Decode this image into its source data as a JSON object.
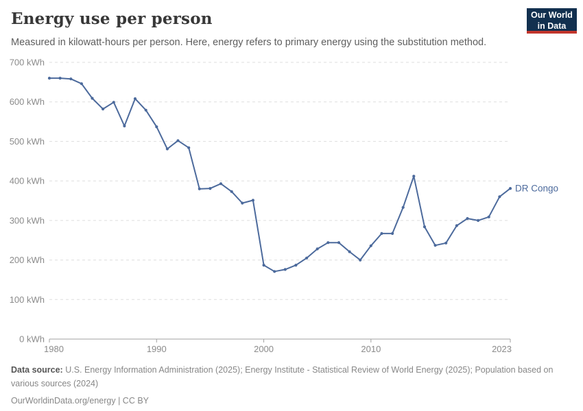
{
  "header": {
    "title": "Energy use per person",
    "subtitle": "Measured in kilowatt-hours per person. Here, energy refers to primary energy using the substitution method.",
    "logo": {
      "line1": "Our World",
      "line2": "in Data",
      "bg_color": "#12304f",
      "accent_color": "#c2352c"
    }
  },
  "chart_data": {
    "type": "line",
    "title": "Energy use per person",
    "unit": "kWh",
    "xlabel": "",
    "ylabel": "",
    "xlim": [
      1980,
      2023
    ],
    "ylim": [
      0,
      700
    ],
    "grid": "horizontal-dashed",
    "grid_color": "#dddddd",
    "axis_color": "#a1a1a1",
    "x": [
      1980,
      1981,
      1982,
      1983,
      1984,
      1985,
      1986,
      1987,
      1988,
      1989,
      1990,
      1991,
      1992,
      1993,
      1994,
      1995,
      1996,
      1997,
      1998,
      1999,
      2000,
      2001,
      2002,
      2003,
      2004,
      2005,
      2006,
      2007,
      2008,
      2009,
      2010,
      2011,
      2012,
      2013,
      2014,
      2015,
      2016,
      2017,
      2018,
      2019,
      2020,
      2021,
      2022,
      2023
    ],
    "series": [
      {
        "name": "DR Congo",
        "color": "#4c6a9c",
        "values": [
          660,
          660,
          658,
          646,
          609,
          582,
          599,
          539,
          608,
          579,
          537,
          481,
          502,
          484,
          380,
          381,
          393,
          373,
          344,
          351,
          187,
          171,
          176,
          187,
          205,
          228,
          244,
          244,
          221,
          200,
          236,
          267,
          267,
          333,
          412,
          284,
          237,
          243,
          287,
          305,
          300,
          309,
          360,
          381
        ]
      }
    ],
    "y_ticks": [
      {
        "value": 0,
        "label": "0 kWh"
      },
      {
        "value": 100,
        "label": "100 kWh"
      },
      {
        "value": 200,
        "label": "200 kWh"
      },
      {
        "value": 300,
        "label": "300 kWh"
      },
      {
        "value": 400,
        "label": "400 kWh"
      },
      {
        "value": 500,
        "label": "500 kWh"
      },
      {
        "value": 600,
        "label": "600 kWh"
      },
      {
        "value": 700,
        "label": "700 kWh"
      }
    ],
    "x_ticks": [
      {
        "value": 1980,
        "label": "1980"
      },
      {
        "value": 1990,
        "label": "1990"
      },
      {
        "value": 2000,
        "label": "2000"
      },
      {
        "value": 2010,
        "label": "2010"
      },
      {
        "value": 2023,
        "label": "2023"
      }
    ],
    "legend_position": "end-of-line"
  },
  "footer": {
    "data_source_label": "Data source:",
    "data_source_text": " U.S. Energy Information Administration (2025); Energy Institute - Statistical Review of World Energy (2025); Population based on various sources (2024)",
    "link_text": "OurWorldinData.org/energy | CC BY"
  }
}
